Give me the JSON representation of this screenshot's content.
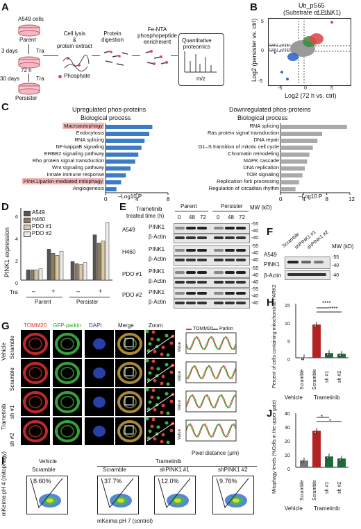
{
  "panels": {
    "A": "A",
    "B": "B",
    "C": "C",
    "D": "D",
    "E": "E",
    "F": "F",
    "G": "G",
    "H": "H",
    "I": "I",
    "J": "J"
  },
  "A": {
    "cells": "A549 cells",
    "parent": "Parent",
    "days3": "3 days",
    "tra1": "Tra",
    "h72": "72 h",
    "days30": "30 days",
    "tra2": "Tra",
    "persister": "Persister",
    "step1": "Cell lysis\n&\nprotein extract",
    "step2": "Protein\ndigestion",
    "step3": "Fe-NTA\nphosphopeptide\nenrichment",
    "step4": "Quantitative\nproteomics",
    "phosphate": "Phosphate",
    "mz": "m/z"
  },
  "B": {
    "title": "Ub_pS65",
    "subtitle": "(Substrate of PINK1)",
    "xlabel": "Log2 (72 h vs. ctrl)",
    "ylabel": "Log2 (persister vs. ctrl)",
    "note1": "ERK2_pY187",
    "note2": "ERK1_pT202",
    "xticks": [
      "-5",
      "0",
      "5"
    ],
    "yticks": [
      "5",
      "0",
      "-5"
    ]
  },
  "C": {
    "up_title": "Upregulated phos-proteins",
    "up_sub": "Biological process",
    "down_title": "Downregulated phos-proteins",
    "down_sub": "Biological process",
    "xlabel": "–Log10 P",
    "up_ticks": [
      "0",
      "4",
      "8"
    ],
    "down_ticks": [
      "0",
      "4",
      "8",
      "12"
    ]
  },
  "D": {
    "ylabel": "PINK1 expression",
    "legend": [
      "A549",
      "H460",
      "PDO #1",
      "PDO #2"
    ],
    "tra": "Tra",
    "parent": "Parent",
    "persister": "Persister",
    "minus": "–",
    "plus": "+",
    "yticks": [
      "0",
      "2",
      "4",
      "6"
    ]
  },
  "E": {
    "trametinib": "Trametinib",
    "treated": "treated time (h)",
    "parent": "Parent",
    "persister": "Persister",
    "mw": "MW (kD)",
    "times": [
      "0",
      "48",
      "72",
      "0",
      "48",
      "72"
    ],
    "rows": [
      "A549",
      "H460",
      "PDO #1",
      "PDO #2"
    ],
    "pink1": "PINK1",
    "actin": "β-Actin",
    "mw_vals": [
      "-55",
      "-40",
      "-40",
      "-55",
      "-40",
      "-40",
      "-55",
      "-40",
      "-40",
      "-55",
      "-40",
      "-40"
    ]
  },
  "F": {
    "lanes": [
      "Scramble",
      "shPINK1 #1",
      "shPINK1 #2"
    ],
    "mw": "MW (kD)",
    "cell": "A549",
    "pink1": "PINK1",
    "actin": "β-Actin",
    "mw1": "-55",
    "mw2": "-40",
    "mw3": "-40"
  },
  "G": {
    "cols": [
      "TOMM20",
      "GFP-parkin",
      "DAPI",
      "Merge",
      "Zoom"
    ],
    "vehicle": "Vehicle",
    "trametinib": "Trametinib",
    "rows": [
      "Scramble",
      "Scramble",
      "sh #1",
      "sh #2"
    ],
    "legend_tomm": "TOMM20",
    "legend_parkin": "Parkin",
    "value": "Value",
    "xlabel": "Pixel distance (μm)"
  },
  "H": {
    "ylabel": "Percent of cells containing mitochondrial PARK2",
    "xcats": [
      "Scramble",
      "Scramble",
      "sh #1",
      "sh #2"
    ],
    "vehicle": "Vehicle",
    "trametinib": "Trametinib",
    "sig1": "****",
    "sig2": "****",
    "yticks": [
      "0",
      "5",
      "10",
      "15"
    ]
  },
  "I": {
    "vehicle": "Vehicle",
    "trametinib": "Trametinib",
    "groups": [
      "Scramble",
      "Scramble",
      "shPINK1 #1",
      "shPINK1 #2"
    ],
    "pcts": [
      "8.60%",
      "37.7%",
      "12.0%",
      "9.76%"
    ],
    "ylabel": "mKeima pH 4 (mitophagy)",
    "xlabel": "mKeima pH 7 (control)"
  },
  "J": {
    "ylabel": "Mitophagy levels (%Cells in the upper gate)",
    "xcats": [
      "Scramble",
      "Scramble",
      "sh #1",
      "sh #2"
    ],
    "vehicle": "Vehicle",
    "trametinib": "Trametinib",
    "sig1": "*",
    "sig2": "*",
    "yticks": [
      "0",
      "10",
      "20",
      "30",
      "40"
    ]
  },
  "chart_data": [
    {
      "type": "bar",
      "title": "Upregulated phos-proteins",
      "subtitle": "Biological process",
      "xlabel": "–Log10 P",
      "categories": [
        "Macroautophagy",
        "Endocytosis",
        "RNA splicing",
        "NF-kappaB signaling",
        "ERBB2 signaling pathway",
        "Rho protein signal transduction",
        "Wnt signaling pathway",
        "Innate immune response",
        "PINK1/parkin-mediated mitophagy",
        "Angiogenesis"
      ],
      "values": [
        6.0,
        5.6,
        5.0,
        4.6,
        4.2,
        3.8,
        3.2,
        2.6,
        2.0,
        1.4
      ],
      "xlim": [
        0,
        8
      ],
      "highlight": [
        "Macroautophagy",
        "PINK1/parkin-mediated mitophagy"
      ],
      "color": "#3b7cc4"
    },
    {
      "type": "bar",
      "title": "Downregulated phos-proteins",
      "subtitle": "Biological process",
      "xlabel": "–Log10 P",
      "categories": [
        "RNA splicing",
        "Ras protein signal transduction",
        "DNA repair",
        "G1–S transition of mitotic cell cycle",
        "Chromatin remodeling",
        "MAPK cascade",
        "DNA replication",
        "TOR signaling",
        "Replication fork processing",
        "Regulation of circadian rhythm"
      ],
      "values": [
        11.5,
        7.2,
        6.4,
        5.6,
        5.0,
        4.6,
        4.2,
        3.8,
        3.2,
        2.6
      ],
      "xlim": [
        0,
        12
      ],
      "color": "#a9a9a9"
    },
    {
      "type": "bar",
      "title": "",
      "ylabel": "PINK1 expression",
      "categories": [
        "Parent –",
        "Parent +",
        "Persister –",
        "Persister +"
      ],
      "series": [
        {
          "name": "A549",
          "values": [
            1.0,
            3.0,
            1.8,
            4.4
          ],
          "color": "#555555"
        },
        {
          "name": "H460",
          "values": [
            1.0,
            2.6,
            1.6,
            3.6
          ],
          "color": "#8c7a5b"
        },
        {
          "name": "PDO #1",
          "values": [
            1.0,
            2.4,
            1.5,
            3.8
          ],
          "color": "#d9c9a3"
        },
        {
          "name": "PDO #2",
          "values": [
            1.1,
            2.8,
            1.7,
            5.6
          ],
          "color": "#e9e9e9"
        }
      ],
      "ylim": [
        0,
        7
      ]
    },
    {
      "type": "bar",
      "ylabel": "Percent of cells containing mitochondrial PARK2",
      "categories": [
        "Scramble (Vehicle)",
        "Scramble (Trametinib)",
        "sh #1 (Trametinib)",
        "sh #2 (Trametinib)"
      ],
      "values": [
        0.1,
        9.2,
        1.3,
        1.1
      ],
      "ylim": [
        0,
        15
      ],
      "colors": [
        "#777777",
        "#b22222",
        "#1f6b3a",
        "#1f6b3a"
      ]
    },
    {
      "type": "bar",
      "ylabel": "Mitophagy levels (%Cells in the upper gate)",
      "categories": [
        "Scramble (Vehicle)",
        "Scramble (Trametinib)",
        "sh #1 (Trametinib)",
        "sh #2 (Trametinib)"
      ],
      "values": [
        5.0,
        27.0,
        8.0,
        6.5
      ],
      "ylim": [
        0,
        40
      ],
      "colors": [
        "#777777",
        "#b22222",
        "#1f6b3a",
        "#1f6b3a"
      ]
    }
  ]
}
